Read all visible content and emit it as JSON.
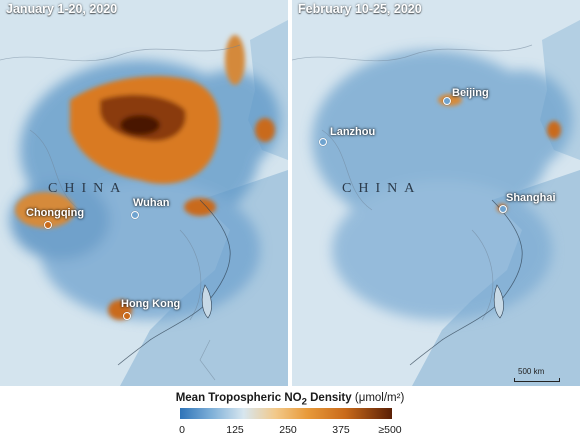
{
  "panels": [
    {
      "title": "January 1-20, 2020",
      "country_label": "CHINA",
      "cities": [
        "Chongqing",
        "Wuhan",
        "Hong Kong"
      ]
    },
    {
      "title": "February 10-25, 2020",
      "country_label": "CHINA",
      "cities": [
        "Beijing",
        "Lanzhou",
        "Shanghai"
      ]
    }
  ],
  "scale_bar_label": "500 km",
  "legend": {
    "title_prefix": "Mean Tropospheric NO",
    "title_sub": "2",
    "title_suffix": " Density ",
    "unit": "(μmol/m²)",
    "ticks": [
      "0",
      "125",
      "250",
      "375",
      "≥500"
    ],
    "colors": [
      "#2f74b8",
      "#7fb0d8",
      "#d7e6ef",
      "#f2c98a",
      "#e89a3a",
      "#c96a1a",
      "#5a1f05"
    ]
  },
  "colors": {
    "ocean": "#a8c7de",
    "land": "#d4e4ee",
    "no2_high": "#c96a1a",
    "no2_peak": "#5a1f05"
  }
}
